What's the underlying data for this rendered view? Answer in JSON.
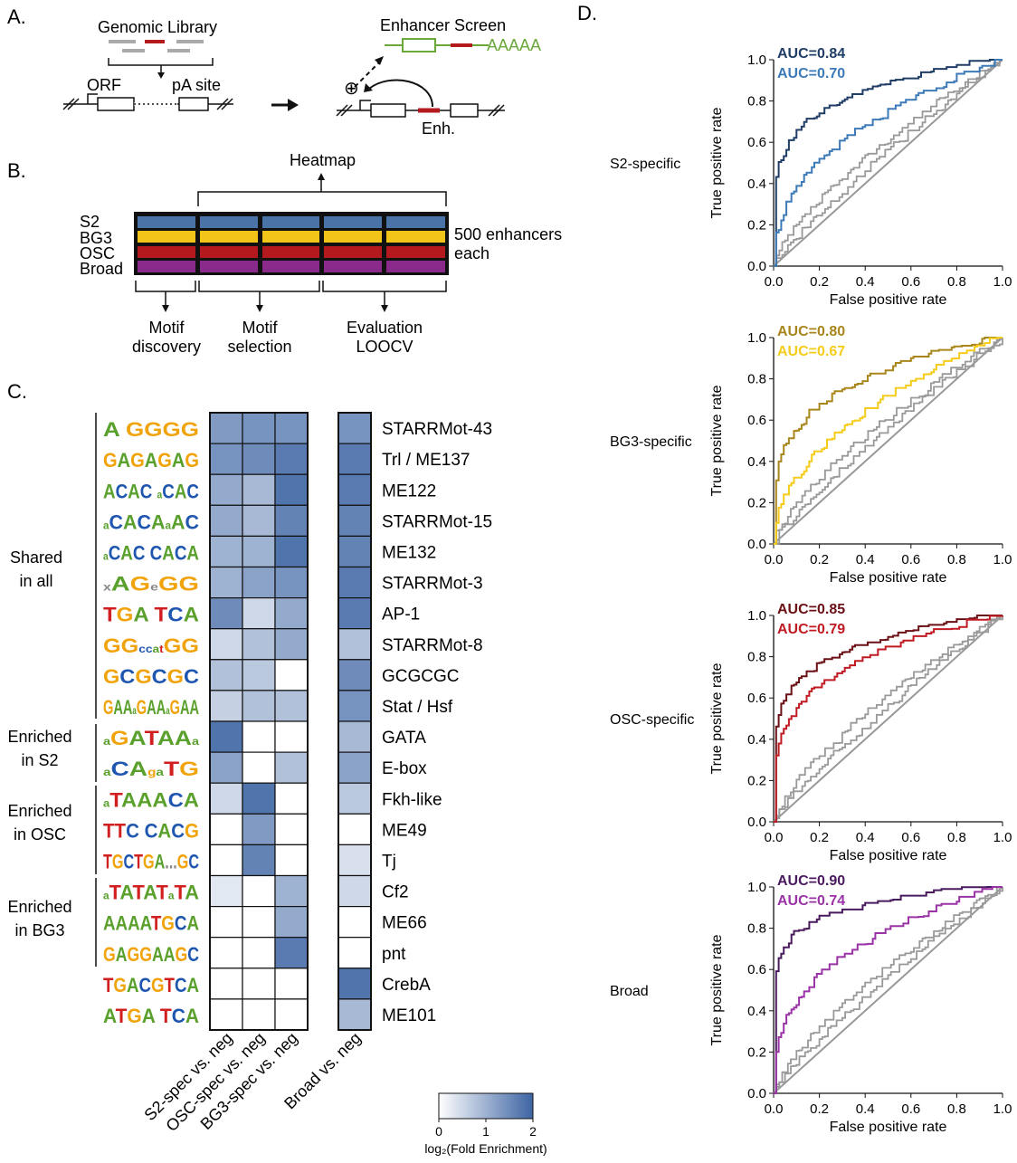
{
  "panel_a": {
    "label": "A.",
    "genomic_library": "Genomic Library",
    "orf": "ORF",
    "pa_site": "pA site",
    "enhancer_screen": "Enhancer Screen",
    "polya": "AAAAA",
    "plus": "⊕",
    "enh": "Enh."
  },
  "panel_b": {
    "label": "B.",
    "heatmap": "Heatmap",
    "rows": [
      "S2",
      "BG3",
      "OSC",
      "Broad"
    ],
    "row_colors": [
      "#4a73a8",
      "#f2c318",
      "#b3191d",
      "#8a2a8b"
    ],
    "enhancers": [
      "500 enhancers",
      "each"
    ],
    "bottom": [
      {
        "line1": "Motif",
        "line2": "discovery"
      },
      {
        "line1": "Motif",
        "line2": "selection"
      },
      {
        "line1": "Evaluation",
        "line2": "LOOCV"
      }
    ]
  },
  "panel_c": {
    "label": "C.",
    "groups": [
      {
        "lines": [
          "Shared",
          "in all"
        ]
      },
      {
        "lines": [
          "Enriched",
          "in S2"
        ]
      },
      {
        "lines": [
          "Enriched",
          "in OSC"
        ]
      },
      {
        "lines": [
          "Enriched",
          "in BG3"
        ]
      }
    ],
    "motifs": [
      {
        "logo": "A GGGG",
        "name": "STARRMot-43"
      },
      {
        "logo": "GAGAGAG",
        "name": "Trl / ME137"
      },
      {
        "logo": "ACAC   aCAC",
        "name": "ME122"
      },
      {
        "logo": "aCACAaAC",
        "name": "STARRMot-15"
      },
      {
        "logo": "aCAC    CACA",
        "name": "ME132"
      },
      {
        "logo": "xAGeGG",
        "name": "STARRMot-3"
      },
      {
        "logo": "TGA TCA",
        "name": "AP-1"
      },
      {
        "logo": "GGccatGG",
        "name": "STARRMot-8"
      },
      {
        "logo": "GCGCGC",
        "name": "GCGCGC"
      },
      {
        "logo": "GAAaGAAaGAA",
        "name": "Stat / Hsf"
      },
      {
        "logo": "aGATAAa",
        "name": "GATA"
      },
      {
        "logo": "aCAgaTG",
        "name": "E-box"
      },
      {
        "logo": "aTAAACA",
        "name": "Fkh-like"
      },
      {
        "logo": "TTC CACG",
        "name": "ME49"
      },
      {
        "logo": "TGCTGA...GC",
        "name": "Tj"
      },
      {
        "logo": "aTATATaTA",
        "name": "Cf2"
      },
      {
        "logo": "AAAATGCA",
        "name": "ME66"
      },
      {
        "logo": "GAGGAAGC",
        "name": "pnt"
      },
      {
        "logo": "TGACGTCA",
        "name": "CrebA"
      },
      {
        "logo": "ATGA   TCA",
        "name": "ME101"
      }
    ],
    "values_specific": [
      [
        1.3,
        1.4,
        1.4
      ],
      [
        1.4,
        1.5,
        1.7
      ],
      [
        1.1,
        0.9,
        1.8
      ],
      [
        1.1,
        0.9,
        1.6
      ],
      [
        1.0,
        1.0,
        1.8
      ],
      [
        1.0,
        1.2,
        1.4
      ],
      [
        1.5,
        0.5,
        1.1
      ],
      [
        0.5,
        0.8,
        1.1
      ],
      [
        0.8,
        0.7,
        0.0
      ],
      [
        0.6,
        0.8,
        0.8
      ],
      [
        1.8,
        0.0,
        0.0
      ],
      [
        1.2,
        0.0,
        0.8
      ],
      [
        0.5,
        1.8,
        0.0
      ],
      [
        0.0,
        1.3,
        0.0
      ],
      [
        0.0,
        1.6,
        0.0
      ],
      [
        0.3,
        0.0,
        1.0
      ],
      [
        0.0,
        0.0,
        1.1
      ],
      [
        0.0,
        0.0,
        1.7
      ],
      [
        0.0,
        0.0,
        0.0
      ],
      [
        0.0,
        0.0,
        0.0
      ]
    ],
    "values_broad": [
      1.4,
      1.7,
      1.7,
      1.6,
      1.6,
      1.7,
      1.7,
      0.8,
      1.5,
      1.4,
      0.9,
      1.2,
      0.7,
      0.0,
      0.4,
      0.5,
      0.0,
      0.0,
      1.8,
      0.9
    ],
    "columns": [
      "S2-spec vs. neg",
      "OSC-spec vs. neg",
      "BG3-spec vs. neg",
      "Broad vs. neg"
    ],
    "colorbar": {
      "ticks": [
        "0",
        "1",
        "2"
      ],
      "label": "log₂(Fold Enrichment)",
      "range": [
        0,
        2
      ],
      "color_low": "#ffffff",
      "color_high": "#3d64a3"
    }
  },
  "panel_d": {
    "label": "D.",
    "xlabel": "False positive rate",
    "ylabel": "True positive rate",
    "ticks": [
      "0.0",
      "0.2",
      "0.4",
      "0.6",
      "0.8",
      "1.0"
    ],
    "plots": [
      {
        "name": "S2-specific",
        "auc": [
          "AUC=0.84",
          "AUC=0.70"
        ],
        "colors": [
          "#1f3d66",
          "#3d7ab8"
        ],
        "auc_values": [
          0.84,
          0.7
        ]
      },
      {
        "name": "BG3-specific",
        "auc": [
          "AUC=0.80",
          "AUC=0.67"
        ],
        "colors": [
          "#a8861c",
          "#f5cc1a"
        ],
        "auc_values": [
          0.8,
          0.67
        ]
      },
      {
        "name": "OSC-specific",
        "auc": [
          "AUC=0.85",
          "AUC=0.79"
        ],
        "colors": [
          "#6b1015",
          "#c01a22"
        ],
        "auc_values": [
          0.85,
          0.79
        ]
      },
      {
        "name": "Broad",
        "auc": [
          "AUC=0.90",
          "AUC=0.74"
        ],
        "colors": [
          "#4a1a5e",
          "#9a33a6"
        ],
        "auc_values": [
          0.9,
          0.74
        ]
      }
    ],
    "chart_data": [
      {
        "type": "line",
        "name": "S2-specific",
        "xlabel": "False positive rate",
        "ylabel": "True positive rate",
        "xlim": [
          0,
          1
        ],
        "ylim": [
          0,
          1
        ],
        "series_auc": [
          0.84,
          0.7
        ]
      },
      {
        "type": "line",
        "name": "BG3-specific",
        "xlabel": "False positive rate",
        "ylabel": "True positive rate",
        "xlim": [
          0,
          1
        ],
        "ylim": [
          0,
          1
        ],
        "series_auc": [
          0.8,
          0.67
        ]
      },
      {
        "type": "line",
        "name": "OSC-specific",
        "xlabel": "False positive rate",
        "ylabel": "True positive rate",
        "xlim": [
          0,
          1
        ],
        "ylim": [
          0,
          1
        ],
        "series_auc": [
          0.85,
          0.79
        ]
      },
      {
        "type": "line",
        "name": "Broad",
        "xlabel": "False positive rate",
        "ylabel": "True positive rate",
        "xlim": [
          0,
          1
        ],
        "ylim": [
          0,
          1
        ],
        "series_auc": [
          0.9,
          0.74
        ]
      }
    ]
  }
}
